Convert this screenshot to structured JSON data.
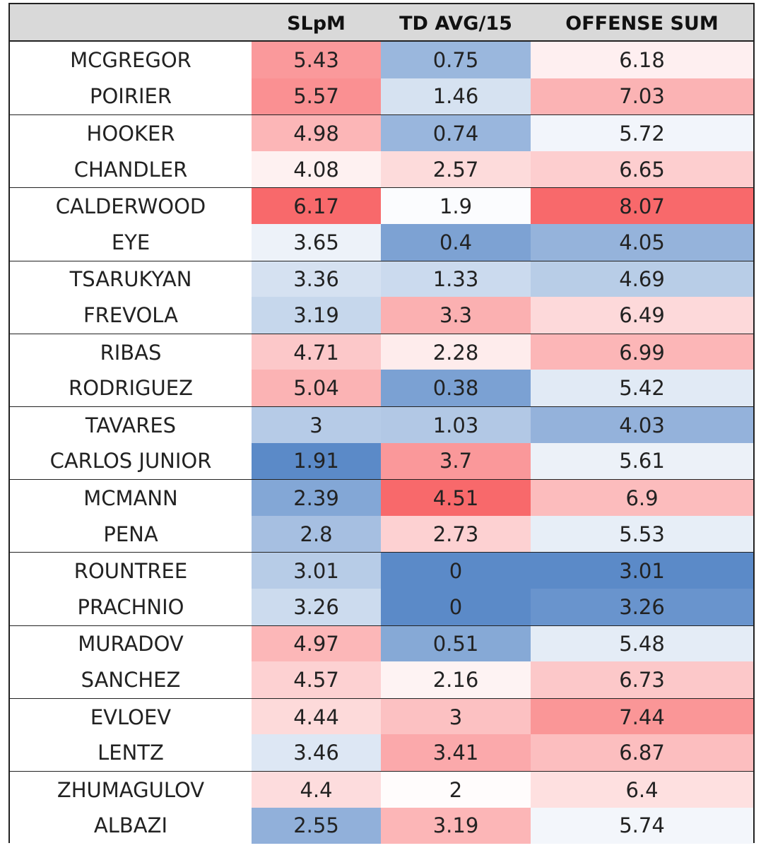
{
  "chart_data": {
    "type": "table",
    "columns": [
      "",
      "SLpM",
      "TD AVG/15",
      "OFFENSE SUM"
    ],
    "rows": [
      {
        "name": "MCGREGOR",
        "slpm": "5.43",
        "td": "0.75",
        "sum": "6.18"
      },
      {
        "name": "POIRIER",
        "slpm": "5.57",
        "td": "1.46",
        "sum": "7.03"
      },
      {
        "name": "HOOKER",
        "slpm": "4.98",
        "td": "0.74",
        "sum": "5.72"
      },
      {
        "name": "CHANDLER",
        "slpm": "4.08",
        "td": "2.57",
        "sum": "6.65"
      },
      {
        "name": "CALDERWOOD",
        "slpm": "6.17",
        "td": "1.9",
        "sum": "8.07"
      },
      {
        "name": "EYE",
        "slpm": "3.65",
        "td": "0.4",
        "sum": "4.05"
      },
      {
        "name": "TSARUKYAN",
        "slpm": "3.36",
        "td": "1.33",
        "sum": "4.69"
      },
      {
        "name": "FREVOLA",
        "slpm": "3.19",
        "td": "3.3",
        "sum": "6.49"
      },
      {
        "name": "RIBAS",
        "slpm": "4.71",
        "td": "2.28",
        "sum": "6.99"
      },
      {
        "name": "RODRIGUEZ",
        "slpm": "5.04",
        "td": "0.38",
        "sum": "5.42"
      },
      {
        "name": "TAVARES",
        "slpm": "3",
        "td": "1.03",
        "sum": "4.03"
      },
      {
        "name": "CARLOS JUNIOR",
        "slpm": "1.91",
        "td": "3.7",
        "sum": "5.61"
      },
      {
        "name": "MCMANN",
        "slpm": "2.39",
        "td": "4.51",
        "sum": "6.9"
      },
      {
        "name": "PENA",
        "slpm": "2.8",
        "td": "2.73",
        "sum": "5.53"
      },
      {
        "name": "ROUNTREE",
        "slpm": "3.01",
        "td": "0",
        "sum": "3.01"
      },
      {
        "name": "PRACHNIO",
        "slpm": "3.26",
        "td": "0",
        "sum": "3.26"
      },
      {
        "name": "MURADOV",
        "slpm": "4.97",
        "td": "0.51",
        "sum": "5.48"
      },
      {
        "name": "SANCHEZ",
        "slpm": "4.57",
        "td": "2.16",
        "sum": "6.73"
      },
      {
        "name": "EVLOEV",
        "slpm": "4.44",
        "td": "3",
        "sum": "7.44"
      },
      {
        "name": "LENTZ",
        "slpm": "3.46",
        "td": "3.41",
        "sum": "6.87"
      },
      {
        "name": "ZHUMAGULOV",
        "slpm": "4.4",
        "td": "2",
        "sum": "6.4"
      },
      {
        "name": "ALBAZI",
        "slpm": "2.55",
        "td": "3.19",
        "sum": "5.74"
      }
    ],
    "color_scale": {
      "low": "#5b8ac8",
      "mid": "#ffffff",
      "high": "#f8696b"
    }
  }
}
